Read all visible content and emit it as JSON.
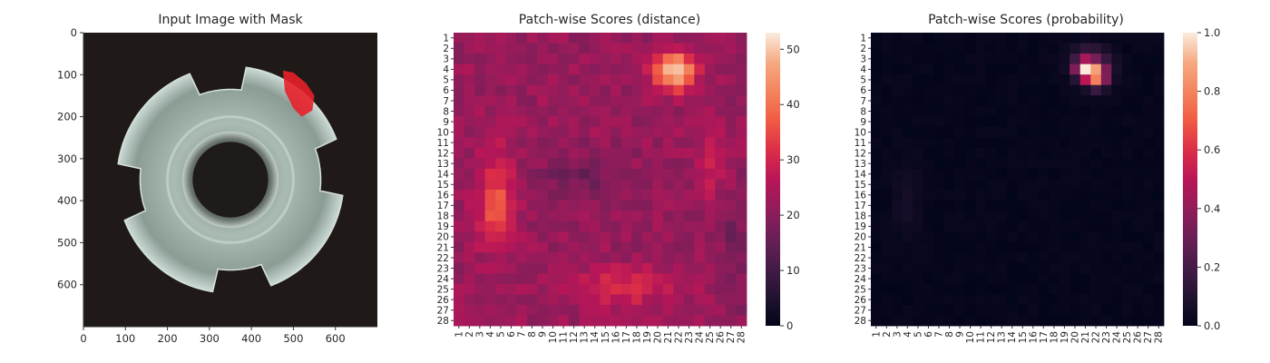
{
  "colors": {
    "background": "#ffffff",
    "photo_background": "#1f1a18",
    "mask": "#e8202a",
    "part": "#9fb3aa"
  },
  "chart_data": [
    {
      "type": "image",
      "title": "Input Image with Mask",
      "x_ticks": [
        0,
        100,
        200,
        300,
        400,
        500,
        600
      ],
      "y_ticks": [
        0,
        100,
        200,
        300,
        400,
        500,
        600
      ],
      "xlim": [
        0,
        700
      ],
      "ylim": [
        700,
        0
      ],
      "image_content": "metal-washer-with-red-defect-mask"
    },
    {
      "type": "heatmap",
      "title": "Patch-wise Scores (distance)",
      "x_tick_labels": [
        "1",
        "2",
        "3",
        "4",
        "5",
        "6",
        "7",
        "8",
        "9",
        "10",
        "11",
        "12",
        "13",
        "14",
        "15",
        "16",
        "17",
        "18",
        "19",
        "20",
        "21",
        "22",
        "23",
        "24",
        "25",
        "26",
        "27",
        "28"
      ],
      "y_tick_labels": [
        "1",
        "2",
        "3",
        "4",
        "5",
        "6",
        "7",
        "8",
        "9",
        "10",
        "11",
        "12",
        "13",
        "14",
        "15",
        "16",
        "17",
        "18",
        "19",
        "20",
        "21",
        "22",
        "23",
        "24",
        "25",
        "26",
        "27",
        "28"
      ],
      "colorbar_ticks": [
        0,
        10,
        20,
        30,
        40,
        50
      ],
      "vmin": 0,
      "vmax": 53,
      "colormap": "rocket",
      "grid": "28x28",
      "hotspots": [
        {
          "row": 4,
          "col": 21,
          "value": 53
        },
        {
          "row": 5,
          "col": 22,
          "value": 48
        },
        {
          "row": 16,
          "col": 4,
          "value": 38
        },
        {
          "row": 25,
          "col": 16,
          "value": 36
        }
      ]
    },
    {
      "type": "heatmap",
      "title": "Patch-wise Scores (probability)",
      "x_tick_labels": [
        "1",
        "2",
        "3",
        "4",
        "5",
        "6",
        "7",
        "8",
        "9",
        "10",
        "11",
        "12",
        "13",
        "14",
        "15",
        "16",
        "17",
        "18",
        "19",
        "20",
        "21",
        "22",
        "23",
        "24",
        "25",
        "26",
        "27",
        "28"
      ],
      "y_tick_labels": [
        "1",
        "2",
        "3",
        "4",
        "5",
        "6",
        "7",
        "8",
        "9",
        "10",
        "11",
        "12",
        "13",
        "14",
        "15",
        "16",
        "17",
        "18",
        "19",
        "20",
        "21",
        "22",
        "23",
        "24",
        "25",
        "26",
        "27",
        "28"
      ],
      "colorbar_ticks": [
        0.0,
        0.2,
        0.4,
        0.6,
        0.8,
        1.0
      ],
      "colorbar_tick_labels": [
        "0.0",
        "0.2",
        "0.4",
        "0.6",
        "0.8",
        "1.0"
      ],
      "vmin": 0,
      "vmax": 1,
      "colormap": "rocket",
      "grid": "28x28",
      "hotspots": [
        {
          "row": 4,
          "col": 21,
          "value": 1.0
        },
        {
          "row": 4,
          "col": 22,
          "value": 0.7
        },
        {
          "row": 5,
          "col": 22,
          "value": 0.65
        },
        {
          "row": 3,
          "col": 21,
          "value": 0.5
        }
      ]
    }
  ]
}
